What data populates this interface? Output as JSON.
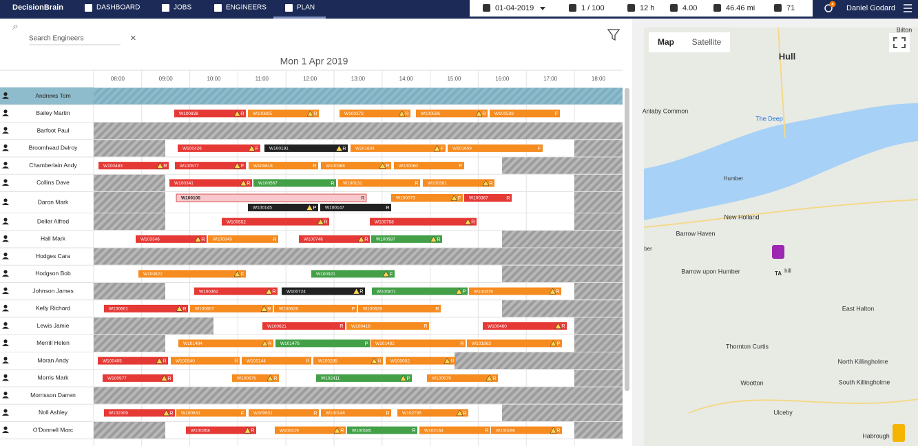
{
  "header": {
    "logo": "DecisionBrain",
    "nav": [
      "DASHBOARD",
      "JOBS",
      "ENGINEERS",
      "PLAN"
    ],
    "status": {
      "date": "01-04-2019",
      "jobs": "1 / 100",
      "hours": "12 h",
      "score": "4.00",
      "distance": "46.46 mi",
      "alerts": "71"
    },
    "notifications": "4",
    "user": "Daniel Godard"
  },
  "search": {
    "placeholder": "Search Engineers"
  },
  "plan": {
    "date": "Mon 1 Apr 2019",
    "hours": [
      "08:00",
      "09:00",
      "10:00",
      "11:00",
      "12:00",
      "13:00",
      "14:00",
      "15:00",
      "16:00",
      "17:00",
      "18:00"
    ],
    "engineers": [
      {
        "name": "Andrews Tom",
        "tasks": []
      },
      {
        "name": "Bailey Martin",
        "tasks": [
          {
            "id": "W100838",
            "code": "R",
            "warn": true,
            "color": "#e53935"
          },
          {
            "id": "W100805",
            "code": "R",
            "warn": true,
            "color": "#f68b1f"
          },
          {
            "id": "W100373",
            "code": "R",
            "warn": true,
            "color": "#f68b1f"
          },
          {
            "id": "W100536",
            "code": "R",
            "warn": true,
            "color": "#f68b1f"
          },
          {
            "id": "W100538",
            "code": "F",
            "color": "#f68b1f"
          }
        ]
      },
      {
        "name": "Barfoot Paul",
        "tasks": []
      },
      {
        "name": "Broomhead Delroy",
        "tasks": [
          {
            "id": "W100426",
            "code": "F",
            "warn": true,
            "color": "#e53935"
          },
          {
            "id": "W100191",
            "code": "R",
            "warn": true,
            "color": "#212121"
          },
          {
            "id": "W101634",
            "code": "F",
            "warn": true,
            "color": "#f68b1f"
          },
          {
            "id": "W101659",
            "code": "F",
            "color": "#f68b1f"
          }
        ]
      },
      {
        "name": "Chamberlain Andy",
        "tasks": [
          {
            "id": "W100483",
            "code": "R",
            "warn": true,
            "color": "#e53935"
          },
          {
            "id": "W100577",
            "code": "F",
            "warn": true,
            "color": "#e53935"
          },
          {
            "id": "W100618",
            "code": "R",
            "color": "#f68b1f"
          },
          {
            "id": "W100368",
            "code": "R",
            "warn": true,
            "color": "#f68b1f"
          },
          {
            "id": "W100060",
            "code": "F",
            "color": "#f68b1f"
          }
        ]
      },
      {
        "name": "Collins Dave",
        "tasks": [
          {
            "id": "W100341",
            "code": "R",
            "warn": true,
            "color": "#e53935"
          },
          {
            "id": "W100567",
            "code": "R",
            "color": "#43a047"
          },
          {
            "id": "W100131",
            "code": "R",
            "color": "#f68b1f"
          },
          {
            "id": "W100381",
            "code": "R",
            "warn": true,
            "color": "#f68b1f"
          }
        ]
      },
      {
        "name": "Daron Mark",
        "tasks": [
          {
            "id": "W100105",
            "code": "R",
            "color": "#f8c8cc"
          },
          {
            "id": "W100073",
            "code": "F",
            "warn": true,
            "color": "#f68b1f"
          },
          {
            "id": "W100367",
            "code": "R",
            "color": "#e53935"
          },
          {
            "id": "W100145",
            "code": "P",
            "warn": true,
            "color": "#212121"
          },
          {
            "id": "W100147",
            "code": "R",
            "color": "#212121"
          }
        ]
      },
      {
        "name": "Deller Alfred",
        "tasks": [
          {
            "id": "W100552",
            "code": "R",
            "warn": true,
            "color": "#e53935"
          },
          {
            "id": "W100758",
            "code": "R",
            "warn": true,
            "color": "#e53935"
          }
        ]
      },
      {
        "name": "Hall Mark",
        "tasks": [
          {
            "id": "W103346",
            "code": "R",
            "warn": true,
            "color": "#e53935"
          },
          {
            "id": "W100349",
            "code": "R",
            "color": "#f68b1f"
          },
          {
            "id": "W100746",
            "code": "R",
            "warn": true,
            "color": "#e53935"
          },
          {
            "id": "W100587",
            "code": "R",
            "warn": true,
            "color": "#43a047"
          }
        ]
      },
      {
        "name": "Hodges Cara",
        "tasks": []
      },
      {
        "name": "Hodgson Bob",
        "tasks": [
          {
            "id": "W100822",
            "code": "F",
            "warn": true,
            "color": "#f68b1f"
          },
          {
            "id": "W100921",
            "code": "F",
            "warn": true,
            "color": "#43a047"
          }
        ]
      },
      {
        "name": "Johnson James",
        "tasks": [
          {
            "id": "W100362",
            "code": "R",
            "warn": true,
            "color": "#e53935"
          },
          {
            "id": "W100724",
            "code": "R",
            "warn": true,
            "color": "#212121"
          },
          {
            "id": "W100871",
            "code": "P",
            "warn": true,
            "color": "#43a047"
          },
          {
            "id": "W100478",
            "code": "R",
            "warn": true,
            "color": "#f68b1f"
          }
        ]
      },
      {
        "name": "Kelly Richard",
        "tasks": [
          {
            "id": "W100601",
            "code": "R",
            "warn": true,
            "color": "#e53935"
          },
          {
            "id": "W100607",
            "code": "R",
            "warn": true,
            "color": "#f68b1f"
          },
          {
            "id": "W100626",
            "code": "F",
            "color": "#f68b1f"
          },
          {
            "id": "W100628",
            "code": "R",
            "color": "#f68b1f"
          }
        ]
      },
      {
        "name": "Lewis Jamie",
        "tasks": [
          {
            "id": "W100621",
            "code": "R",
            "color": "#e53935"
          },
          {
            "id": "W100416",
            "code": "R",
            "color": "#f68b1f"
          },
          {
            "id": "W100460",
            "code": "R",
            "warn": true,
            "color": "#e53935"
          }
        ]
      },
      {
        "name": "Merrill Helen",
        "tasks": [
          {
            "id": "W101484",
            "code": "R",
            "warn": true,
            "color": "#f68b1f"
          },
          {
            "id": "W101476",
            "code": "P",
            "color": "#43a047"
          },
          {
            "id": "W101482",
            "code": "R",
            "color": "#f68b1f"
          },
          {
            "id": "W101863",
            "code": "P",
            "warn": true,
            "color": "#f68b1f"
          }
        ]
      },
      {
        "name": "Moran Andy",
        "tasks": [
          {
            "id": "W100405",
            "code": "R",
            "warn": true,
            "color": "#e53935"
          },
          {
            "id": "W100540",
            "code": "R",
            "color": "#f68b1f"
          },
          {
            "id": "W100144",
            "code": "R",
            "color": "#f68b1f"
          },
          {
            "id": "W100285",
            "code": "R",
            "warn": true,
            "color": "#f68b1f"
          },
          {
            "id": "W100002",
            "code": "R",
            "warn": true,
            "color": "#f68b1f"
          }
        ]
      },
      {
        "name": "Morris Mark",
        "tasks": [
          {
            "id": "W100577",
            "code": "R",
            "warn": true,
            "color": "#e53935"
          },
          {
            "id": "W100675",
            "code": "R",
            "warn": true,
            "color": "#f68b1f"
          },
          {
            "id": "W102411",
            "code": "P",
            "warn": true,
            "color": "#43a047"
          },
          {
            "id": "W100579",
            "code": "R",
            "warn": true,
            "color": "#f68b1f"
          }
        ]
      },
      {
        "name": "Morrisson Darren",
        "tasks": []
      },
      {
        "name": "Noll Ashley",
        "tasks": [
          {
            "id": "W102309",
            "code": "R",
            "warn": true,
            "color": "#e53935"
          },
          {
            "id": "W100631",
            "code": "F",
            "color": "#f68b1f"
          },
          {
            "id": "W100631",
            "code": "R",
            "color": "#f68b1f"
          },
          {
            "id": "W100148",
            "code": "R",
            "color": "#f68b1f"
          },
          {
            "id": "W102795",
            "code": "R",
            "warn": true,
            "color": "#f68b1f"
          }
        ]
      },
      {
        "name": "O'Donnell Marc",
        "tasks": [
          {
            "id": "W100358",
            "code": "R",
            "warn": true,
            "color": "#e53935"
          },
          {
            "id": "W100419",
            "code": "R",
            "warn": true,
            "color": "#f68b1f"
          },
          {
            "id": "W100185",
            "code": "R",
            "color": "#43a047"
          },
          {
            "id": "W102164",
            "code": "R",
            "color": "#f68b1f"
          },
          {
            "id": "W100196",
            "code": "R",
            "warn": true,
            "color": "#f68b1f"
          }
        ]
      }
    ]
  },
  "map": {
    "buttons": [
      "Map",
      "Satellite"
    ],
    "labels": [
      "Bilton",
      "Hull",
      "Anlaby Common",
      "The Deep",
      "Humber",
      "New Holland",
      "Barrow Haven",
      "Barrow upon Humber",
      "TA",
      "hill",
      "East Halton",
      "Thornton Curtis",
      "North Killingholme",
      "South Killingholme",
      "Wootton",
      "Ulceby",
      "Habrough",
      "ber"
    ]
  }
}
